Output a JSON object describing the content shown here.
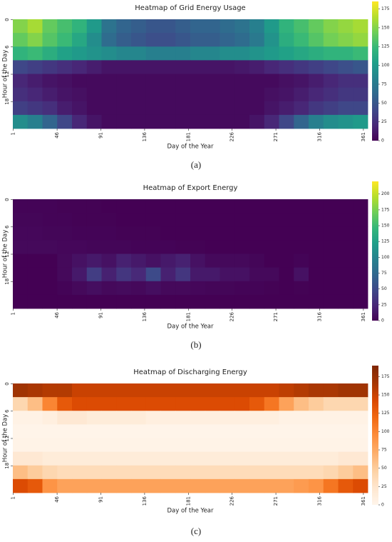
{
  "chart_data": [
    {
      "type": "heatmap",
      "title": "Heatmap of Grid Energy Usage",
      "xlabel": "Day of the Year",
      "ylabel": "Hour of the Day",
      "caption": "(a)",
      "colormap": "viridis",
      "clim": [
        0,
        185
      ],
      "cticks": [
        0,
        25,
        50,
        75,
        100,
        125,
        150,
        175
      ],
      "xlim": [
        1,
        366
      ],
      "xticks": [
        1,
        46,
        91,
        136,
        181,
        226,
        271,
        316,
        361
      ],
      "ylim": [
        0,
        24
      ],
      "yticks": [
        0,
        6,
        12,
        18
      ],
      "values": [
        [
          150,
          160,
          140,
          130,
          120,
          100,
          70,
          60,
          55,
          50,
          50,
          55,
          60,
          60,
          65,
          70,
          80,
          100,
          120,
          130,
          140,
          150,
          155,
          160
        ],
        [
          140,
          150,
          135,
          125,
          110,
          90,
          65,
          55,
          50,
          45,
          45,
          50,
          55,
          55,
          60,
          65,
          75,
          95,
          115,
          125,
          135,
          145,
          150,
          155
        ],
        [
          120,
          125,
          115,
          105,
          100,
          95,
          90,
          85,
          85,
          80,
          80,
          80,
          85,
          85,
          90,
          90,
          95,
          100,
          105,
          110,
          115,
          120,
          120,
          125
        ],
        [
          40,
          35,
          30,
          25,
          20,
          15,
          10,
          10,
          10,
          10,
          10,
          10,
          10,
          10,
          10,
          12,
          15,
          20,
          25,
          30,
          35,
          40,
          45,
          50
        ],
        [
          20,
          15,
          10,
          8,
          5,
          5,
          5,
          5,
          5,
          5,
          5,
          5,
          5,
          5,
          5,
          5,
          5,
          5,
          8,
          10,
          15,
          20,
          25,
          25
        ],
        [
          25,
          20,
          15,
          10,
          8,
          5,
          5,
          5,
          5,
          5,
          5,
          5,
          5,
          5,
          5,
          5,
          5,
          8,
          10,
          15,
          20,
          25,
          30,
          30
        ],
        [
          35,
          30,
          25,
          15,
          10,
          5,
          5,
          5,
          5,
          5,
          5,
          5,
          5,
          5,
          5,
          5,
          5,
          10,
          15,
          20,
          30,
          35,
          40,
          40
        ],
        [
          90,
          80,
          60,
          40,
          20,
          10,
          5,
          5,
          5,
          5,
          5,
          5,
          5,
          5,
          5,
          5,
          10,
          20,
          40,
          60,
          80,
          90,
          95,
          100
        ]
      ]
    },
    {
      "type": "heatmap",
      "title": "Heatmap of Export Energy",
      "xlabel": "Day of the Year",
      "ylabel": "Hour of the Day",
      "caption": "(b)",
      "colormap": "viridis",
      "clim": [
        0,
        220
      ],
      "cticks": [
        0,
        25,
        50,
        75,
        100,
        125,
        150,
        175,
        200
      ],
      "xlim": [
        1,
        366
      ],
      "xticks": [
        1,
        46,
        91,
        136,
        181,
        226,
        271,
        316,
        361
      ],
      "ylim": [
        0,
        24
      ],
      "yticks": [
        0,
        6,
        12,
        18
      ],
      "values": [
        [
          2,
          2,
          2,
          1,
          1,
          1,
          0,
          0,
          0,
          0,
          0,
          0,
          0,
          0,
          0,
          0,
          0,
          0,
          0,
          0,
          0,
          0,
          0,
          0
        ],
        [
          3,
          3,
          2,
          2,
          1,
          1,
          1,
          0,
          0,
          0,
          0,
          0,
          0,
          0,
          0,
          0,
          0,
          0,
          0,
          0,
          0,
          0,
          0,
          0
        ],
        [
          4,
          4,
          3,
          3,
          2,
          2,
          2,
          1,
          1,
          1,
          0,
          0,
          0,
          0,
          0,
          0,
          0,
          0,
          0,
          0,
          0,
          0,
          0,
          0
        ],
        [
          5,
          5,
          5,
          4,
          4,
          3,
          3,
          3,
          2,
          2,
          2,
          1,
          1,
          0,
          0,
          0,
          0,
          0,
          0,
          0,
          0,
          0,
          0,
          0
        ],
        [
          0,
          0,
          0,
          5,
          10,
          15,
          10,
          20,
          15,
          10,
          15,
          20,
          10,
          5,
          5,
          5,
          3,
          0,
          0,
          2,
          0,
          0,
          0,
          0
        ],
        [
          0,
          0,
          0,
          5,
          15,
          40,
          20,
          35,
          25,
          50,
          20,
          35,
          15,
          15,
          10,
          10,
          5,
          5,
          0,
          10,
          0,
          0,
          0,
          0
        ],
        [
          0,
          0,
          0,
          2,
          5,
          8,
          5,
          6,
          5,
          8,
          5,
          5,
          4,
          3,
          3,
          2,
          2,
          1,
          0,
          1,
          0,
          0,
          0,
          0
        ],
        [
          0,
          0,
          0,
          0,
          0,
          0,
          0,
          0,
          0,
          0,
          0,
          0,
          0,
          0,
          0,
          0,
          0,
          0,
          0,
          0,
          0,
          0,
          0,
          0
        ]
      ]
    },
    {
      "type": "heatmap",
      "title": "Heatmap of Discharging Energy",
      "xlabel": "Day of the Year",
      "ylabel": "Hour of the Day",
      "caption": "(c)",
      "colormap": "oranges",
      "clim": [
        0,
        190
      ],
      "cticks": [
        0,
        25,
        50,
        75,
        100,
        125,
        150,
        175
      ],
      "xlim": [
        1,
        366
      ],
      "xticks": [
        1,
        46,
        91,
        136,
        181,
        226,
        271,
        316,
        361
      ],
      "ylim": [
        0,
        24
      ],
      "yticks": [
        0,
        6,
        12,
        18
      ],
      "values": [
        [
          170,
          165,
          160,
          160,
          150,
          150,
          150,
          150,
          150,
          150,
          150,
          150,
          150,
          150,
          150,
          150,
          150,
          150,
          155,
          160,
          165,
          165,
          170,
          170
        ],
        [
          40,
          60,
          100,
          130,
          140,
          140,
          140,
          140,
          140,
          140,
          140,
          140,
          140,
          140,
          140,
          140,
          130,
          110,
          80,
          60,
          50,
          40,
          40,
          40
        ],
        [
          5,
          5,
          10,
          20,
          20,
          15,
          15,
          15,
          15,
          10,
          10,
          10,
          10,
          10,
          10,
          10,
          10,
          10,
          5,
          5,
          5,
          5,
          5,
          5
        ],
        [
          2,
          2,
          2,
          2,
          2,
          2,
          2,
          2,
          2,
          2,
          2,
          2,
          2,
          2,
          2,
          2,
          2,
          2,
          2,
          2,
          2,
          2,
          2,
          2
        ],
        [
          3,
          3,
          3,
          3,
          3,
          3,
          3,
          3,
          3,
          3,
          3,
          3,
          3,
          3,
          3,
          3,
          3,
          3,
          3,
          3,
          3,
          3,
          3,
          3
        ],
        [
          20,
          20,
          15,
          15,
          15,
          15,
          15,
          15,
          15,
          15,
          15,
          15,
          15,
          15,
          15,
          15,
          15,
          15,
          15,
          15,
          15,
          15,
          20,
          20
        ],
        [
          60,
          50,
          40,
          35,
          35,
          35,
          35,
          35,
          35,
          35,
          35,
          35,
          35,
          35,
          35,
          35,
          35,
          35,
          35,
          35,
          35,
          40,
          50,
          60
        ],
        [
          140,
          130,
          90,
          80,
          80,
          80,
          80,
          80,
          80,
          80,
          80,
          80,
          80,
          80,
          80,
          80,
          80,
          80,
          80,
          85,
          90,
          110,
          130,
          140
        ]
      ]
    }
  ]
}
